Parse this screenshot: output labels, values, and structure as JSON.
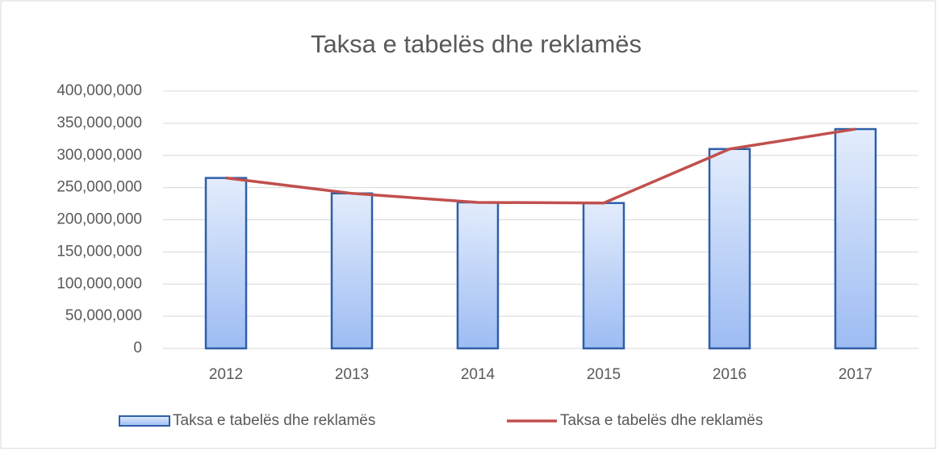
{
  "chart_data": {
    "type": "combo",
    "title": "Taksa e tabelës dhe reklamës",
    "categories": [
      "2012",
      "2013",
      "2014",
      "2015",
      "2016",
      "2017"
    ],
    "series": [
      {
        "name": "Taksa e tabelës dhe reklamës",
        "type": "bar",
        "color": "#9dbcf3",
        "values": [
          265000000,
          241000000,
          227000000,
          226000000,
          310000000,
          341000000
        ]
      },
      {
        "name": "Taksa e tabelës dhe reklamës",
        "type": "line",
        "color": "#c0504d",
        "values": [
          265000000,
          241000000,
          227000000,
          226000000,
          310000000,
          341000000
        ]
      }
    ],
    "ylim": [
      0,
      400000000
    ],
    "yticks": [
      0,
      {
        "value": 50000000,
        "label": "50,000,000"
      },
      {
        "value": 100000000,
        "label": "100,000,000"
      },
      {
        "value": 150000000,
        "label": "150,000,000"
      },
      {
        "value": 200000000,
        "label": "200,000,000"
      },
      {
        "value": 250000000,
        "label": "250,000,000"
      },
      {
        "value": 300000000,
        "label": "300,000,000"
      },
      {
        "value": 350000000,
        "label": "350,000,000"
      },
      {
        "value": 400000000,
        "label": "400,000,000"
      }
    ],
    "grid": true,
    "legend": "bottom"
  }
}
